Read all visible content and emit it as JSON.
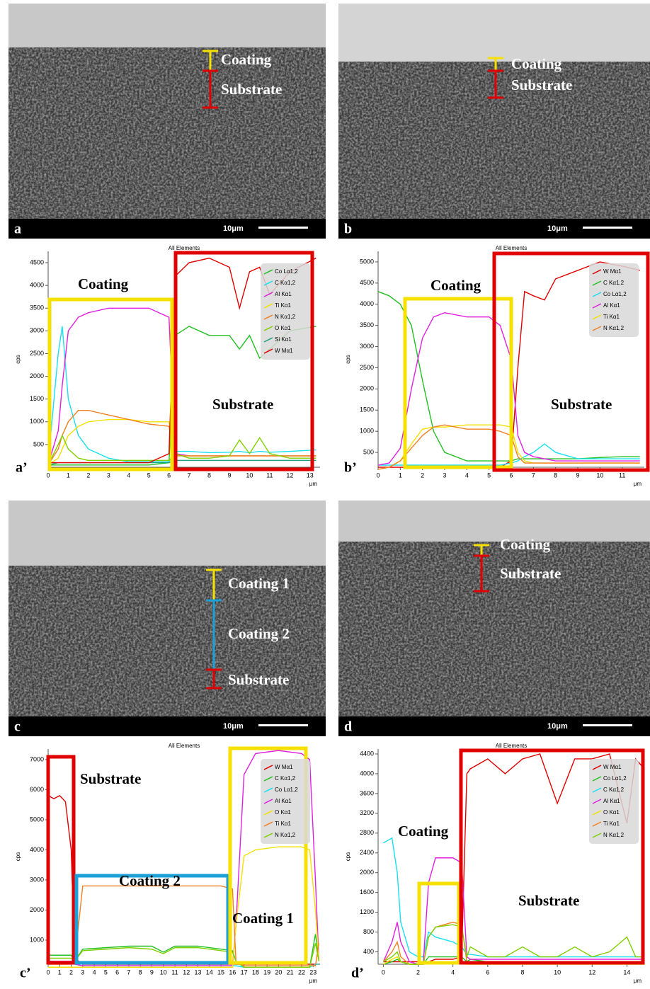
{
  "images": [
    {
      "label": "a",
      "scale_bar": "10μm",
      "annotations": [
        "Coating",
        "Substrate"
      ]
    },
    {
      "label": "b",
      "scale_bar": "10μm",
      "annotations": [
        "Coating",
        "Substrate"
      ]
    },
    {
      "label": "c",
      "scale_bar": "10μm",
      "annotations": [
        "Coating 1",
        "Coating 2",
        "Substrate"
      ]
    },
    {
      "label": "d",
      "scale_bar": "10μm",
      "annotations": [
        "Coating",
        "Substrate"
      ]
    }
  ],
  "chart_data": [
    {
      "type": "line",
      "title": "All Elements",
      "y_label": "cps",
      "x_label": "μm",
      "panel_label": "a’",
      "annotations": [
        "Coating",
        "Substrate"
      ],
      "xlim": [
        0,
        13.5
      ],
      "xticks": [
        0,
        1,
        2,
        3,
        4,
        5,
        6,
        7,
        8,
        9,
        10,
        11,
        12,
        13
      ],
      "ylim": [
        0,
        4750
      ],
      "yticks": [
        500,
        1000,
        1500,
        2000,
        2500,
        3000,
        3500,
        4000,
        4500
      ],
      "x": [
        0,
        0.5,
        0.7,
        1,
        1.5,
        2,
        3,
        4,
        5,
        6,
        6.3,
        7,
        8,
        9,
        9.5,
        10,
        10.5,
        11,
        12,
        13.3
      ],
      "series": [
        {
          "name": "Co Lα1,2",
          "color": "#22c022",
          "values": [
            50,
            50,
            50,
            50,
            50,
            50,
            50,
            50,
            50,
            100,
            2900,
            3100,
            2900,
            2900,
            2600,
            2900,
            2400,
            2600,
            3000,
            3100
          ]
        },
        {
          "name": "C Kα1,2",
          "color": "#19e0f0",
          "values": [
            100,
            2500,
            3100,
            1500,
            700,
            400,
            200,
            120,
            120,
            120,
            350,
            350,
            320,
            330,
            350,
            320,
            350,
            330,
            350,
            380
          ]
        },
        {
          "name": "Al Kα1",
          "color": "#e020e0",
          "values": [
            50,
            800,
            1800,
            3000,
            3300,
            3400,
            3500,
            3500,
            3500,
            3300,
            300,
            250,
            250,
            250,
            250,
            250,
            250,
            250,
            250,
            250
          ]
        },
        {
          "name": "Ti Kα1",
          "color": "#f5e000",
          "values": [
            50,
            200,
            400,
            700,
            900,
            1000,
            1050,
            1050,
            1000,
            1000,
            250,
            250,
            250,
            250,
            250,
            250,
            250,
            250,
            250,
            250
          ]
        },
        {
          "name": "N Kα1,2",
          "color": "#f08020",
          "values": [
            50,
            400,
            700,
            1000,
            1250,
            1250,
            1150,
            1050,
            950,
            900,
            250,
            250,
            250,
            250,
            250,
            250,
            250,
            250,
            250,
            250
          ]
        },
        {
          "name": "O Kα1",
          "color": "#80d000",
          "values": [
            50,
            500,
            700,
            400,
            200,
            150,
            150,
            150,
            150,
            150,
            300,
            200,
            200,
            250,
            600,
            300,
            650,
            300,
            200,
            200
          ]
        },
        {
          "name": "Si Kα1",
          "color": "#20a080",
          "values": [
            50,
            100,
            100,
            100,
            100,
            100,
            100,
            100,
            100,
            100,
            150,
            150,
            150,
            150,
            150,
            150,
            150,
            150,
            150,
            150
          ]
        },
        {
          "name": "W Mα1",
          "color": "#e00000",
          "values": [
            100,
            100,
            100,
            100,
            100,
            100,
            100,
            100,
            100,
            300,
            4200,
            4500,
            4600,
            4400,
            3500,
            4300,
            4400,
            3800,
            4300,
            4600
          ]
        }
      ]
    },
    {
      "type": "line",
      "title": "All Elements",
      "y_label": "cps",
      "x_label": "μm",
      "panel_label": "b’",
      "annotations": [
        "Coating",
        "Substrate"
      ],
      "xlim": [
        0,
        12
      ],
      "xticks": [
        0,
        1,
        2,
        3,
        4,
        5,
        6,
        7,
        8,
        9,
        10,
        11
      ],
      "ylim": [
        150,
        5250
      ],
      "yticks": [
        500,
        1000,
        1500,
        2000,
        2500,
        3000,
        3500,
        4000,
        4500,
        5000
      ],
      "x": [
        0,
        0.5,
        1,
        1.5,
        2,
        2.5,
        3,
        4,
        5,
        5.5,
        6,
        6.3,
        6.6,
        7,
        7.5,
        8,
        9,
        10,
        11,
        11.8
      ],
      "series": [
        {
          "name": "W Mα1",
          "color": "#e00000",
          "values": [
            150,
            150,
            150,
            150,
            150,
            150,
            150,
            150,
            150,
            150,
            300,
            2500,
            4300,
            4200,
            4100,
            4600,
            4800,
            5000,
            4900,
            4800
          ]
        },
        {
          "name": "C Kα1,2",
          "color": "#22c022",
          "values": [
            4300,
            4200,
            4000,
            3500,
            2200,
            1000,
            500,
            300,
            300,
            300,
            300,
            350,
            350,
            350,
            350,
            350,
            350,
            380,
            400,
            400
          ]
        },
        {
          "name": "Co Lα1,2",
          "color": "#19e0f0",
          "values": [
            200,
            200,
            200,
            200,
            200,
            200,
            200,
            200,
            200,
            200,
            250,
            300,
            400,
            500,
            700,
            500,
            350,
            350,
            350,
            350
          ]
        },
        {
          "name": "Al Kα1",
          "color": "#e020e0",
          "values": [
            200,
            250,
            600,
            2000,
            3200,
            3700,
            3800,
            3700,
            3700,
            3500,
            2700,
            900,
            500,
            400,
            350,
            300,
            300,
            300,
            300,
            300
          ]
        },
        {
          "name": "Ti Kα1",
          "color": "#f5e000",
          "values": [
            100,
            150,
            300,
            700,
            1050,
            1100,
            1100,
            1150,
            1150,
            1150,
            1100,
            500,
            300,
            250,
            250,
            250,
            250,
            250,
            250,
            250
          ]
        },
        {
          "name": "N Kα1,2",
          "color": "#f08020",
          "values": [
            100,
            150,
            300,
            600,
            900,
            1100,
            1150,
            1050,
            1050,
            1000,
            900,
            400,
            250,
            250,
            250,
            250,
            250,
            250,
            250,
            250
          ]
        }
      ]
    },
    {
      "type": "line",
      "title": "All Elements",
      "y_label": "cps",
      "x_label": "μm",
      "panel_label": "c’",
      "annotations": [
        "Substrate",
        "Coating 2",
        "Coating 1"
      ],
      "xlim": [
        0,
        23.6
      ],
      "xticks": [
        0,
        1,
        2,
        3,
        4,
        5,
        6,
        7,
        8,
        9,
        10,
        11,
        12,
        13,
        14,
        15,
        16,
        17,
        18,
        19,
        20,
        21,
        22,
        23
      ],
      "ylim": [
        200,
        7350
      ],
      "yticks": [
        1000,
        2000,
        3000,
        4000,
        5000,
        6000,
        7000
      ],
      "x": [
        0,
        0.5,
        1,
        1.5,
        2,
        2.3,
        3,
        5,
        7,
        9,
        10,
        11,
        13,
        15,
        16,
        16.3,
        17,
        18,
        20,
        22,
        22.7,
        23.2,
        23.5
      ],
      "series": [
        {
          "name": "W Mα1",
          "color": "#e00000",
          "values": [
            5800,
            5700,
            5800,
            5600,
            4000,
            400,
            200,
            200,
            200,
            200,
            200,
            200,
            200,
            200,
            200,
            200,
            200,
            200,
            200,
            200,
            200,
            200,
            200
          ]
        },
        {
          "name": "C Kα1,2",
          "color": "#22c022",
          "values": [
            500,
            500,
            500,
            500,
            500,
            300,
            700,
            750,
            800,
            800,
            600,
            800,
            800,
            700,
            650,
            300,
            100,
            100,
            100,
            100,
            100,
            1200,
            400
          ]
        },
        {
          "name": "Co Lα1,2",
          "color": "#19e0f0",
          "values": [
            300,
            300,
            300,
            300,
            300,
            200,
            150,
            150,
            150,
            150,
            150,
            150,
            150,
            150,
            150,
            150,
            100,
            100,
            100,
            100,
            100,
            200,
            200
          ]
        },
        {
          "name": "Al Kα1",
          "color": "#e020e0",
          "values": [
            300,
            300,
            300,
            300,
            300,
            200,
            150,
            150,
            150,
            150,
            150,
            150,
            150,
            150,
            150,
            1500,
            6500,
            7200,
            7300,
            7200,
            7000,
            3000,
            300
          ]
        },
        {
          "name": "O Kα1",
          "color": "#f5e000",
          "values": [
            100,
            100,
            100,
            100,
            100,
            100,
            100,
            100,
            100,
            100,
            100,
            100,
            100,
            100,
            100,
            1500,
            3800,
            4000,
            4100,
            4100,
            4000,
            2000,
            300
          ]
        },
        {
          "name": "Ti Kα1",
          "color": "#f08020",
          "values": [
            200,
            200,
            200,
            200,
            200,
            300,
            2800,
            2800,
            2800,
            2800,
            2800,
            2800,
            2800,
            2800,
            2700,
            300,
            150,
            150,
            150,
            150,
            150,
            150,
            900
          ]
        },
        {
          "name": "N Kα1,2",
          "color": "#80d000",
          "values": [
            400,
            400,
            400,
            400,
            400,
            300,
            650,
            700,
            750,
            700,
            550,
            750,
            750,
            650,
            600,
            300,
            100,
            100,
            100,
            100,
            100,
            900,
            300
          ]
        }
      ]
    },
    {
      "type": "line",
      "title": "All Elements",
      "y_label": "cps",
      "x_label": "μm",
      "panel_label": "d’",
      "annotations": [
        "Coating",
        "Substrate"
      ],
      "xlim": [
        -0.3,
        15
      ],
      "xticks": [
        0,
        2,
        4,
        6,
        8,
        10,
        12,
        14
      ],
      "ylim": [
        150,
        4500
      ],
      "yticks": [
        400,
        800,
        1200,
        1600,
        2000,
        2400,
        2800,
        3200,
        3600,
        4000,
        4400
      ],
      "x": [
        0,
        0.5,
        0.8,
        1,
        1.5,
        2,
        2.3,
        2.6,
        3,
        4,
        4.5,
        4.8,
        5,
        6,
        7,
        8,
        9,
        10,
        11,
        12,
        13,
        14,
        14.5,
        15
      ],
      "series": [
        {
          "name": "W Mα1",
          "color": "#e00000",
          "values": [
            200,
            200,
            200,
            200,
            200,
            200,
            200,
            200,
            250,
            250,
            300,
            4000,
            4100,
            4300,
            4000,
            4300,
            4400,
            3400,
            4300,
            4300,
            4400,
            3000,
            4300,
            4100
          ]
        },
        {
          "name": "Co Lα1,2",
          "color": "#22c022",
          "values": [
            150,
            200,
            250,
            200,
            150,
            150,
            150,
            300,
            300,
            300,
            300,
            200,
            250,
            200,
            200,
            200,
            200,
            200,
            200,
            200,
            200,
            200,
            200,
            200
          ]
        },
        {
          "name": "C Kα1,2",
          "color": "#19e0f0",
          "values": [
            2600,
            2700,
            2000,
            1000,
            400,
            300,
            300,
            800,
            700,
            600,
            500,
            350,
            350,
            300,
            300,
            300,
            300,
            300,
            300,
            300,
            300,
            300,
            300,
            300
          ]
        },
        {
          "name": "Al Kα1",
          "color": "#e020e0",
          "values": [
            200,
            600,
            1000,
            600,
            200,
            150,
            200,
            1800,
            2300,
            2300,
            2200,
            300,
            250,
            250,
            250,
            250,
            250,
            250,
            250,
            250,
            250,
            250,
            250,
            250
          ]
        },
        {
          "name": "O Kα1",
          "color": "#f5e000",
          "values": [
            150,
            250,
            300,
            200,
            150,
            150,
            150,
            200,
            200,
            200,
            200,
            150,
            150,
            150,
            150,
            150,
            150,
            150,
            150,
            150,
            150,
            150,
            150,
            150
          ]
        },
        {
          "name": "Ti Kα1",
          "color": "#f08020",
          "values": [
            200,
            400,
            600,
            300,
            150,
            150,
            150,
            700,
            900,
            1000,
            950,
            200,
            200,
            200,
            200,
            200,
            200,
            200,
            200,
            200,
            200,
            200,
            200,
            200
          ]
        },
        {
          "name": "N Kα1,2",
          "color": "#80d000",
          "values": [
            200,
            300,
            400,
            200,
            150,
            150,
            150,
            700,
            900,
            950,
            900,
            300,
            500,
            300,
            300,
            500,
            300,
            300,
            500,
            300,
            400,
            700,
            300,
            300
          ]
        }
      ]
    }
  ]
}
